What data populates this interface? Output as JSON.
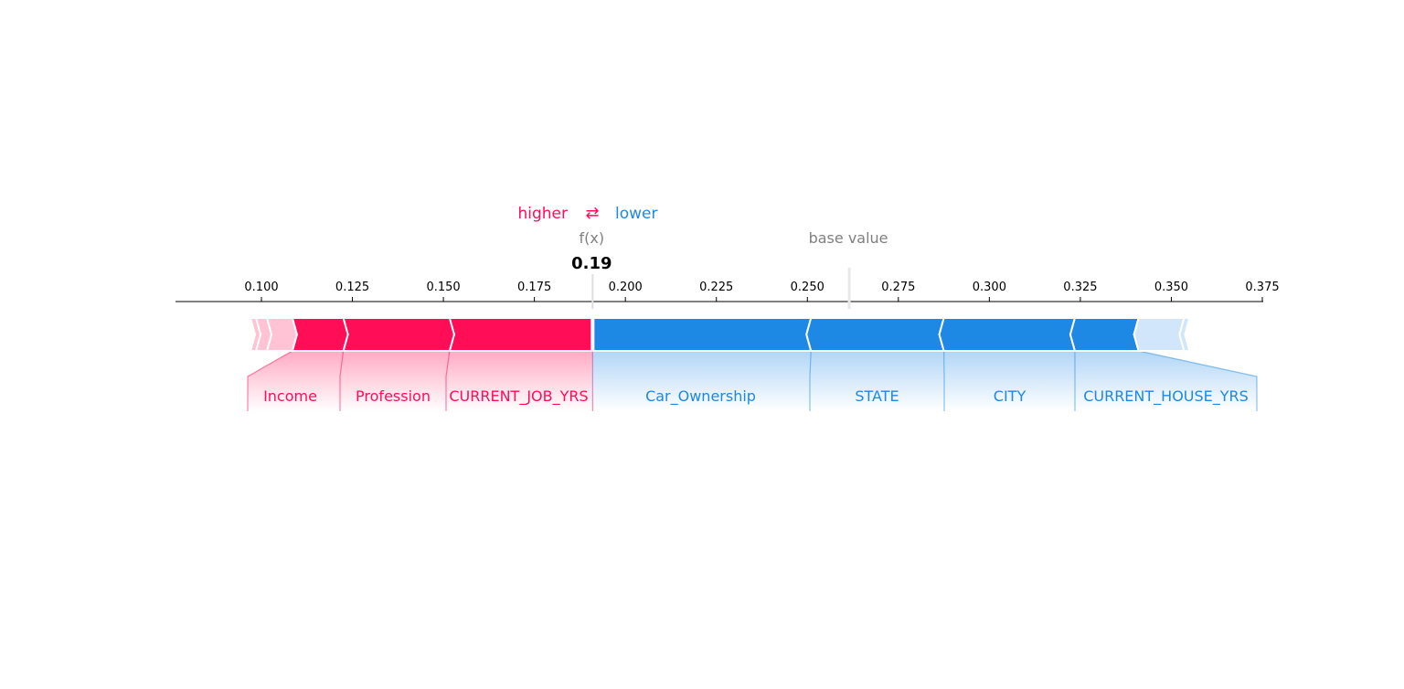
{
  "chart_data": {
    "type": "force",
    "legend": {
      "higher": "higher",
      "lower": "lower",
      "arrow_glyph": "⇄"
    },
    "output_label": "f(x)",
    "output_value": 0.191,
    "output_value_text": "0.19",
    "base_label": "base value",
    "base_value": 0.2615,
    "xlim": [
      0.0765,
      0.375
    ],
    "ticks": [
      0.1,
      0.125,
      0.15,
      0.175,
      0.2,
      0.225,
      0.25,
      0.275,
      0.3,
      0.325,
      0.35,
      0.375
    ],
    "tick_labels": [
      "0.100",
      "0.125",
      "0.150",
      "0.175",
      "0.200",
      "0.225",
      "0.250",
      "0.275",
      "0.300",
      "0.325",
      "0.350",
      "0.375"
    ],
    "positive_features": [
      {
        "name": "CURRENT_JOB_YRS",
        "from": 0.1517,
        "to": 0.191
      },
      {
        "name": "Profession",
        "from": 0.1225,
        "to": 0.1517
      },
      {
        "name": "Income",
        "from": 0.1085,
        "to": 0.1225
      },
      {
        "name": "",
        "from": 0.1015,
        "to": 0.1085
      },
      {
        "name": "",
        "from": 0.0985,
        "to": 0.1015
      },
      {
        "name": "",
        "from": 0.097,
        "to": 0.0985
      }
    ],
    "negative_features": [
      {
        "name": "Car_Ownership",
        "from": 0.191,
        "to": 0.251
      },
      {
        "name": "STATE",
        "from": 0.251,
        "to": 0.2875
      },
      {
        "name": "CITY",
        "from": 0.2875,
        "to": 0.3235
      },
      {
        "name": "CURRENT_HOUSE_YRS",
        "from": 0.3235,
        "to": 0.341
      },
      {
        "name": "",
        "from": 0.341,
        "to": 0.3535
      },
      {
        "name": "",
        "from": 0.3535,
        "to": 0.355
      }
    ],
    "colors": {
      "positive": "#ff0d57",
      "negative": "#1e88e5",
      "positive_light": "#ffc3d5",
      "negative_light": "#d1e6fa",
      "base": "#808080",
      "text": "#000000"
    }
  }
}
